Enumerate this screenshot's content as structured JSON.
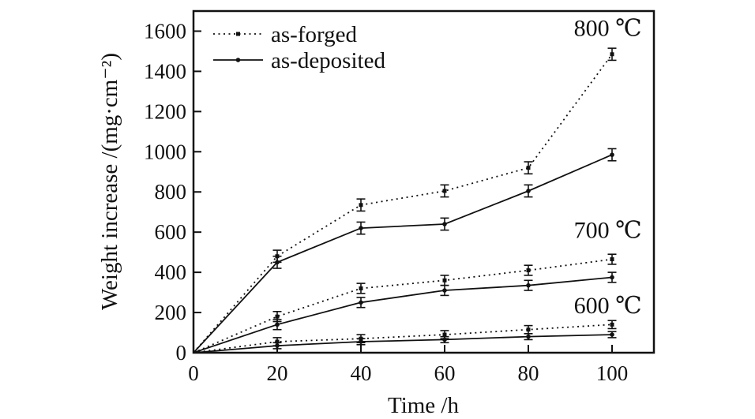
{
  "chart_data": {
    "type": "line",
    "title": "",
    "xlabel": "Time /h",
    "ylabel": "Weight increase /(mg·cm⁻²)",
    "xlim": [
      0,
      110
    ],
    "ylim": [
      0,
      1700
    ],
    "grid": false,
    "x_ticks": [
      0,
      20,
      40,
      60,
      80,
      100
    ],
    "y_ticks": [
      0,
      200,
      400,
      600,
      800,
      1000,
      1200,
      1400,
      1600
    ],
    "x": [
      0,
      20,
      40,
      60,
      80,
      100
    ],
    "legend": {
      "position": "top-left-inside",
      "items": [
        {
          "label": "as-forged",
          "style": "dotted",
          "marker": "square"
        },
        {
          "label": "as-deposited",
          "style": "solid",
          "marker": "circle"
        }
      ]
    },
    "annotations": [
      {
        "text": "800 ℃",
        "x": 99,
        "y": 1615
      },
      {
        "text": "700 ℃",
        "x": 99,
        "y": 610
      },
      {
        "text": "600 ℃",
        "x": 99,
        "y": 235
      }
    ],
    "series": [
      {
        "name": "as-forged 800 ℃",
        "temperature": "800 ℃",
        "style": "dotted",
        "marker": "square",
        "values": [
          0,
          480,
          735,
          805,
          920,
          1485
        ],
        "error": 30
      },
      {
        "name": "as-deposited 800 ℃",
        "temperature": "800 ℃",
        "style": "solid",
        "marker": "circle",
        "values": [
          0,
          450,
          620,
          640,
          805,
          985
        ],
        "error": 30
      },
      {
        "name": "as-forged 700 ℃",
        "temperature": "700 ℃",
        "style": "dotted",
        "marker": "square",
        "values": [
          0,
          180,
          320,
          360,
          410,
          465
        ],
        "error": 25
      },
      {
        "name": "as-deposited 700 ℃",
        "temperature": "700 ℃",
        "style": "solid",
        "marker": "circle",
        "values": [
          0,
          140,
          250,
          310,
          335,
          375
        ],
        "error": 25
      },
      {
        "name": "as-forged 600 ℃",
        "temperature": "600 ℃",
        "style": "dotted",
        "marker": "square",
        "values": [
          0,
          55,
          70,
          90,
          115,
          140
        ],
        "error": 20
      },
      {
        "name": "as-deposited 600 ℃",
        "temperature": "600 ℃",
        "style": "solid",
        "marker": "circle",
        "values": [
          0,
          35,
          55,
          65,
          80,
          90
        ],
        "error": 15
      }
    ],
    "colors": {
      "line": "#111111",
      "background": "#ffffff"
    }
  }
}
